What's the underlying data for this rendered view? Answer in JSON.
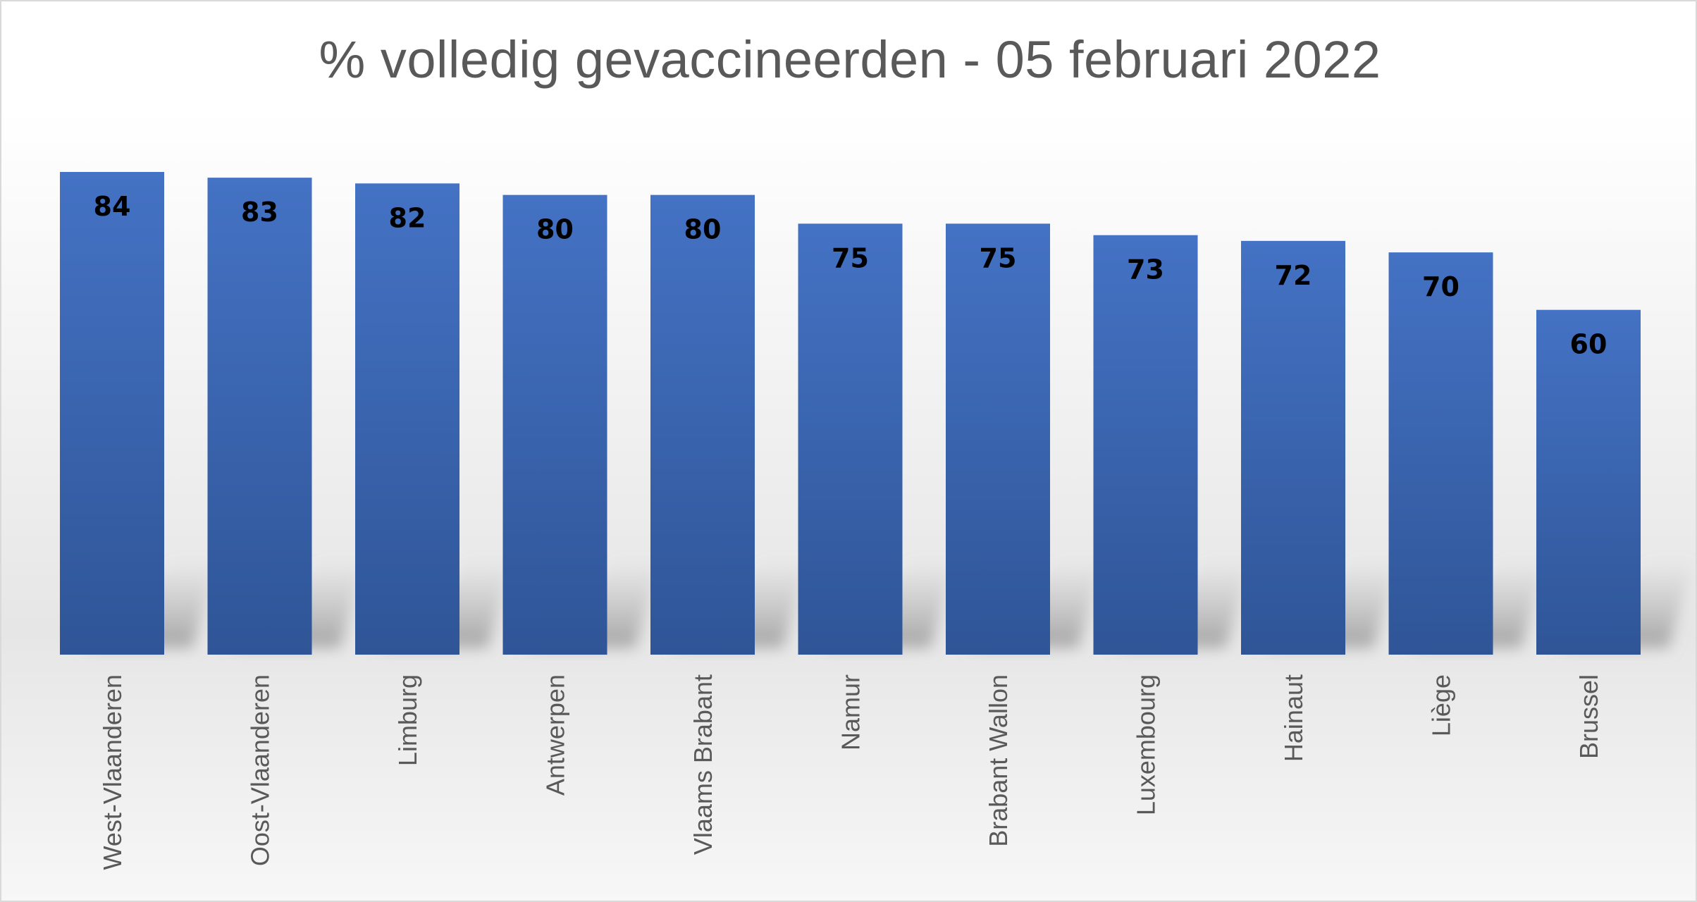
{
  "chart_data": {
    "type": "bar",
    "title": "% volledig gevaccineerden - 05 februari 2022",
    "xlabel": "",
    "ylabel": "",
    "categories": [
      "West-Vlaanderen",
      "Oost-Vlaanderen",
      "Limburg",
      "Antwerpen",
      "Vlaams Brabant",
      "Namur",
      "Brabant Wallon",
      "Luxembourg",
      "Hainaut",
      "Liège",
      "Brussel"
    ],
    "values": [
      84,
      83,
      82,
      80,
      80,
      75,
      75,
      73,
      72,
      70,
      60
    ],
    "ylim": [
      0,
      84
    ],
    "grid": false,
    "legend": "none",
    "data_labels": "inside-top",
    "colors": {
      "bar_top": "#4472c4",
      "bar_bottom": "#2f5597",
      "title": "#595959",
      "axis_label": "#595959",
      "value_label": "#000000"
    }
  }
}
